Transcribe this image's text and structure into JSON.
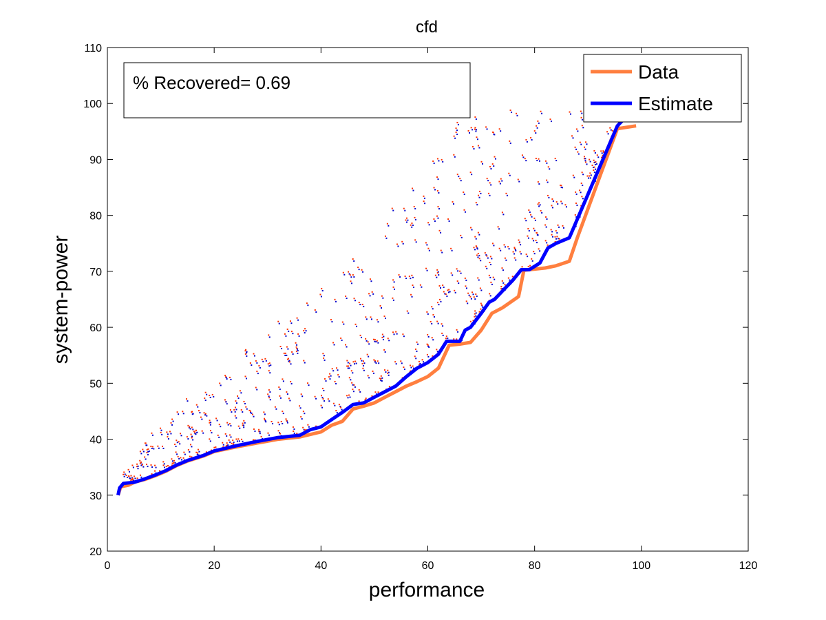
{
  "chart_data": {
    "type": "line",
    "title": "cfd",
    "xlabel": "performance",
    "ylabel": "system-power",
    "xlim": [
      0,
      120
    ],
    "ylim": [
      20,
      110
    ],
    "xticks": [
      0,
      20,
      40,
      60,
      80,
      100,
      120
    ],
    "yticks": [
      20,
      30,
      40,
      50,
      60,
      70,
      80,
      90,
      100,
      110
    ],
    "grid": false,
    "legend": {
      "location": "top-right",
      "entries": [
        "Data",
        "Estimate"
      ]
    },
    "annotation": "% Recovered= 0.69",
    "series": [
      {
        "name": "Data",
        "color": "#ff7f3f",
        "x": [
          2,
          2.5,
          4,
          5,
          7,
          9,
          11,
          13,
          15,
          18,
          20,
          24,
          28,
          32,
          36,
          40,
          42,
          44,
          46,
          48,
          50,
          52,
          54,
          56,
          58,
          60,
          62,
          64,
          66,
          68,
          70,
          72,
          74,
          77,
          78,
          80,
          82,
          84,
          86.5,
          88,
          95.5,
          99
        ],
        "y": [
          30,
          31.5,
          31.8,
          32.3,
          32.8,
          33.5,
          34.3,
          35.3,
          36.1,
          37,
          37.8,
          38.6,
          39.3,
          40,
          40.4,
          41.3,
          42.5,
          43.2,
          45.4,
          45.9,
          46.5,
          47.5,
          48.5,
          49.5,
          50.3,
          51.2,
          52.7,
          56.8,
          57,
          57.3,
          59.5,
          62.5,
          63.5,
          65.5,
          70.2,
          70.4,
          70.6,
          71,
          71.8,
          76,
          95.5,
          96
        ]
      },
      {
        "name": "Estimate",
        "color": "#0000ff",
        "x": [
          2,
          2.3,
          3,
          5,
          7,
          9,
          11,
          13,
          15,
          18,
          20,
          24,
          28,
          32,
          36,
          38,
          40,
          42,
          44,
          46,
          48,
          50,
          52,
          54,
          56,
          58,
          60,
          62,
          63.5,
          66,
          67,
          68,
          70,
          71.5,
          72.5,
          74,
          76,
          77.5,
          79,
          81,
          82.5,
          84,
          86.5,
          95.5,
          97
        ],
        "y": [
          30,
          31.3,
          32.1,
          32.3,
          32.9,
          33.6,
          34.4,
          35.4,
          36.2,
          37.1,
          37.9,
          38.8,
          39.6,
          40.3,
          40.7,
          41.7,
          42.2,
          43.5,
          44.8,
          46.2,
          46.5,
          47.5,
          48.5,
          49.5,
          51.2,
          52.7,
          53.7,
          55.2,
          57.5,
          57.5,
          59.5,
          60,
          62.5,
          64.5,
          65,
          66.5,
          68.5,
          70.3,
          70.3,
          71.5,
          74.2,
          75,
          76,
          96,
          97.5
        ]
      }
    ],
    "scatter_colors": [
      "#ff3300",
      "#0000cc"
    ]
  }
}
